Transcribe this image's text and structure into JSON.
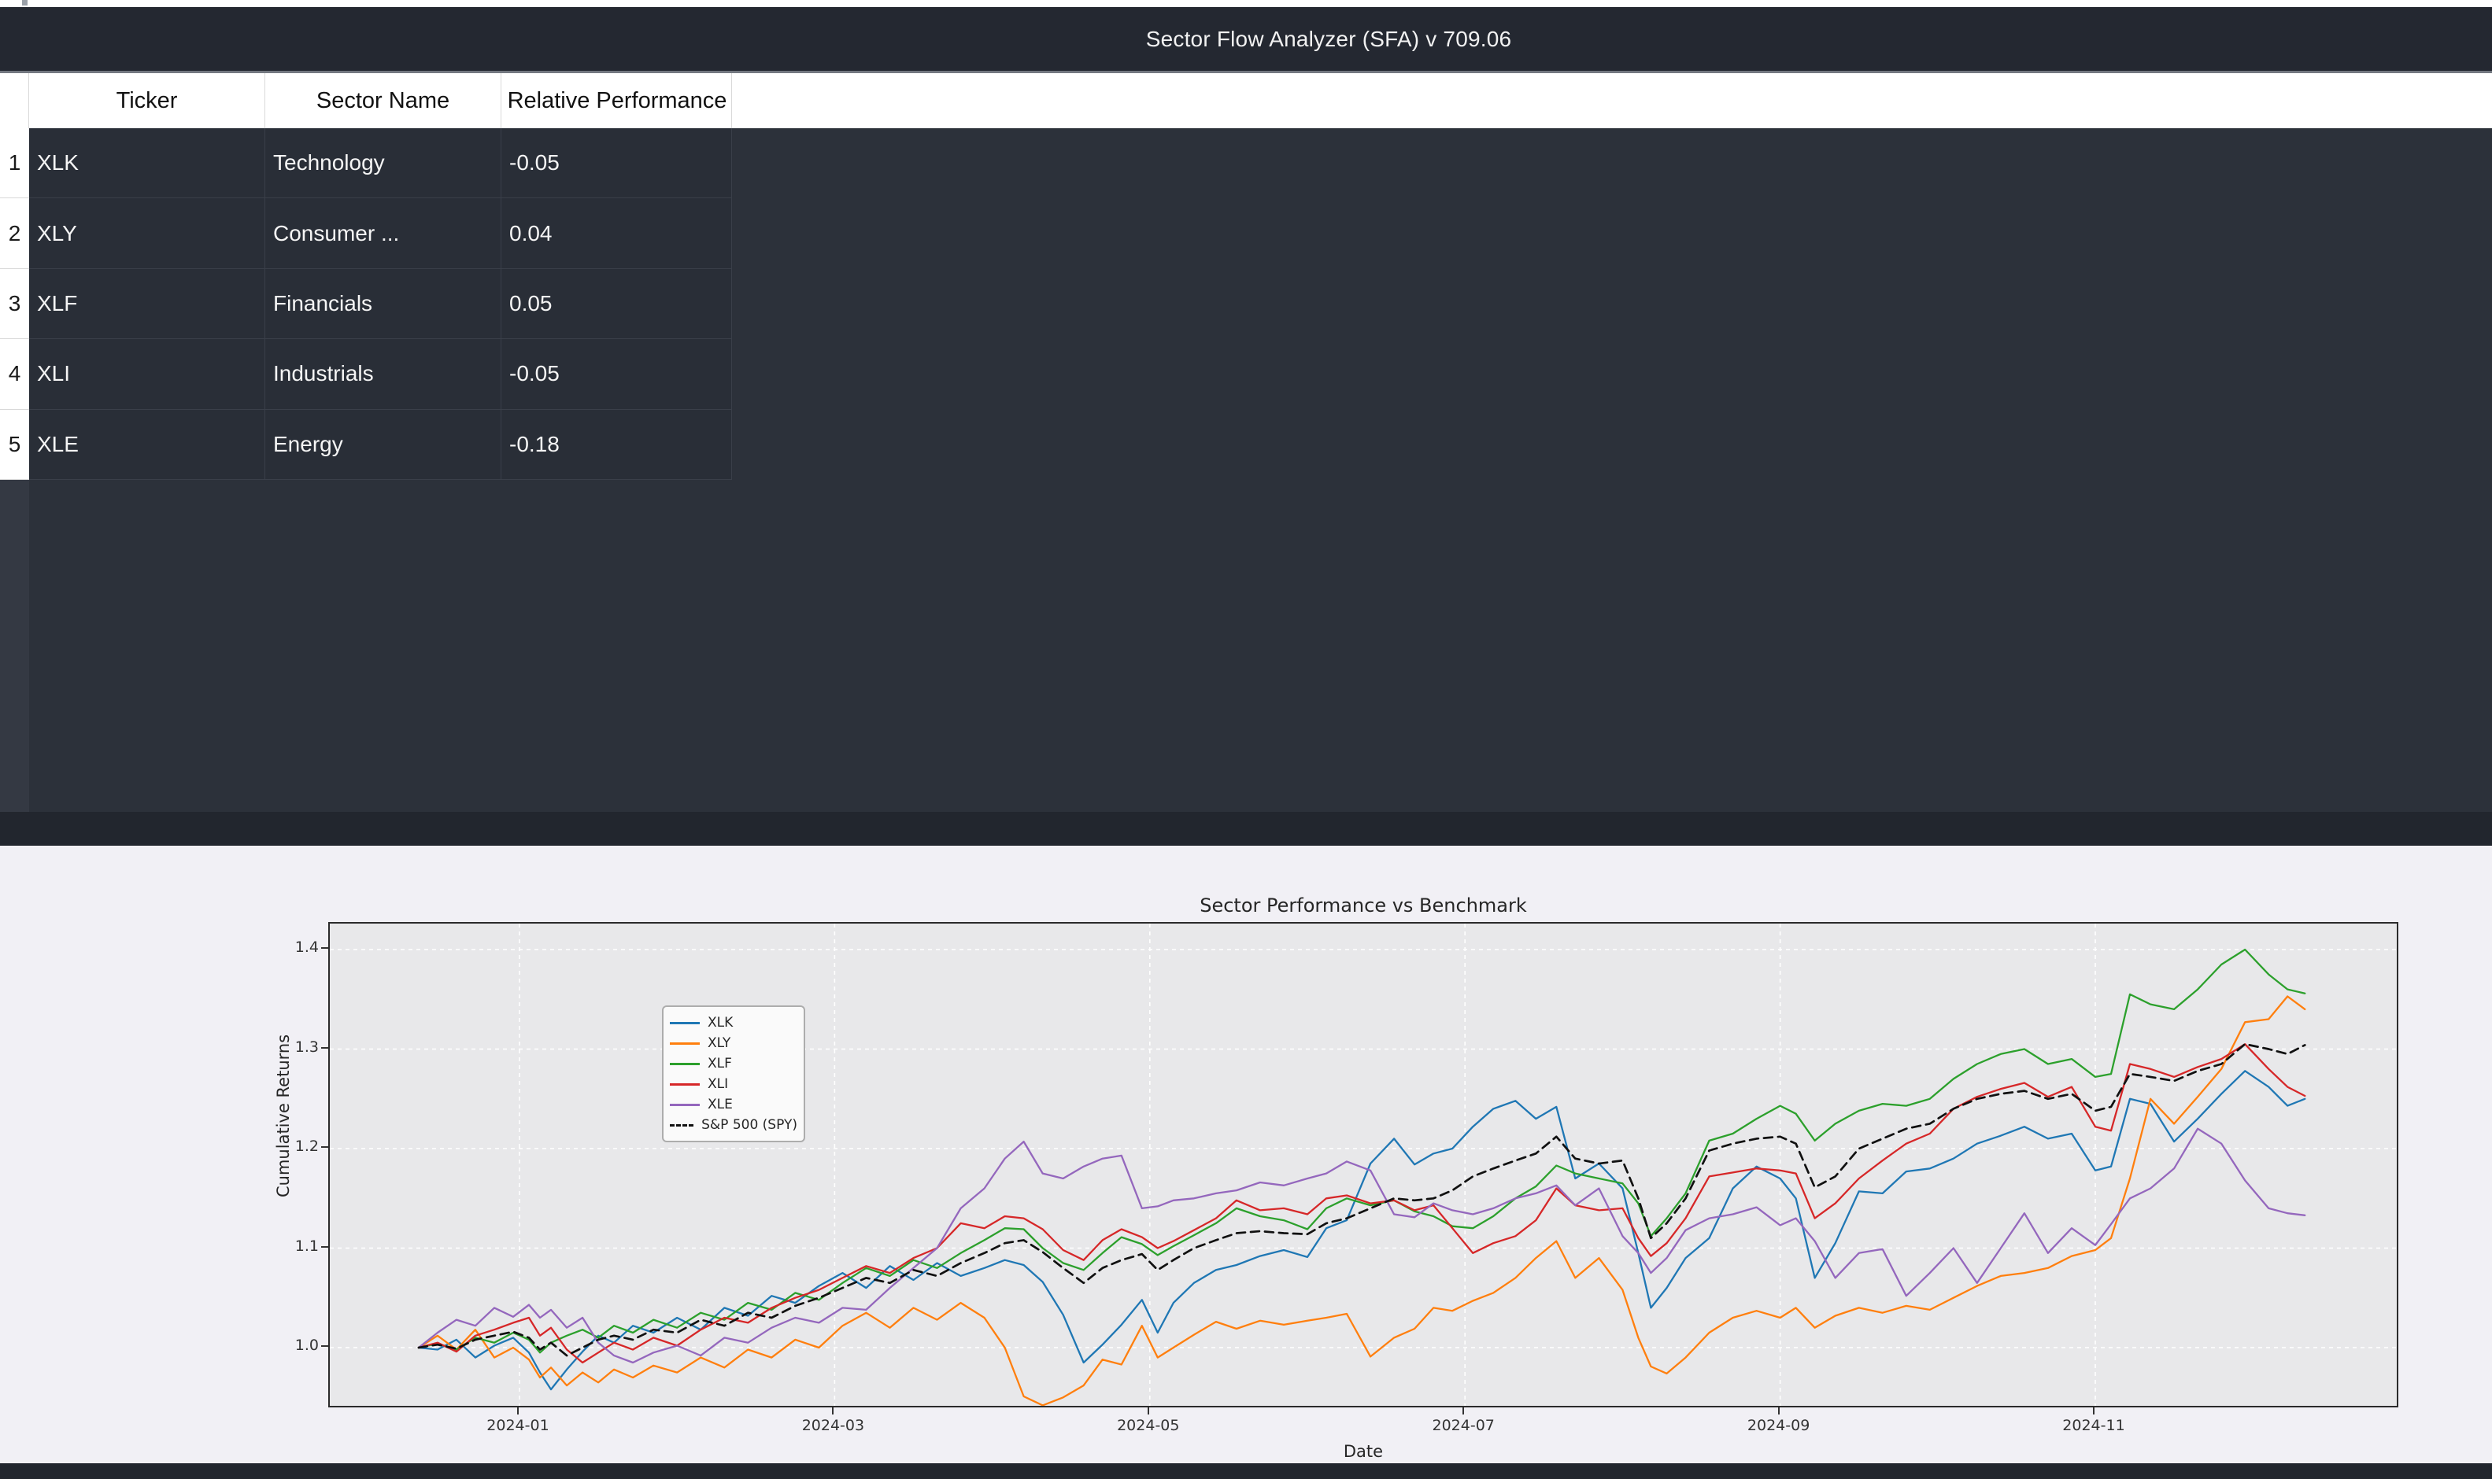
{
  "app": {
    "title_bar": "Sector Flow Analyzer (SFA) v 709.06"
  },
  "table": {
    "columns": [
      "Ticker",
      "Sector Name",
      "Relative Performance"
    ],
    "rows": [
      {
        "num": "1",
        "ticker": "XLK",
        "sector": "Technology",
        "rel_perf": "-0.05"
      },
      {
        "num": "2",
        "ticker": "XLY",
        "sector": "Consumer ...",
        "rel_perf": "0.04"
      },
      {
        "num": "3",
        "ticker": "XLF",
        "sector": "Financials",
        "rel_perf": "0.05"
      },
      {
        "num": "4",
        "ticker": "XLI",
        "sector": "Industrials",
        "rel_perf": "-0.05"
      },
      {
        "num": "5",
        "ticker": "XLE",
        "sector": "Energy",
        "rel_perf": "-0.18"
      }
    ]
  },
  "chart_data": {
    "type": "line",
    "title": "Sector Performance vs Benchmark",
    "xlabel": "Date",
    "ylabel": "Cumulative Returns",
    "grid": "white-dashed",
    "legend_position": "upper left",
    "plot_bg": "#e8e8ea",
    "figure_bg": "#f1f0f5",
    "yticks": [
      1.0,
      1.1,
      1.2,
      1.3,
      1.4
    ],
    "ylim": [
      0.938,
      1.426
    ],
    "xlim_months": [
      -1.2,
      11.93
    ],
    "xticks": [
      {
        "label": "2024-01",
        "m": 0
      },
      {
        "label": "2024-03",
        "m": 2
      },
      {
        "label": "2024-05",
        "m": 4
      },
      {
        "label": "2024-07",
        "m": 6
      },
      {
        "label": "2024-09",
        "m": 8
      },
      {
        "label": "2024-11",
        "m": 10
      }
    ],
    "x_months": [
      -0.64,
      -0.52,
      -0.4,
      -0.28,
      -0.16,
      -0.04,
      0.06,
      0.13,
      0.2,
      0.3,
      0.4,
      0.5,
      0.6,
      0.72,
      0.85,
      1.0,
      1.15,
      1.3,
      1.45,
      1.6,
      1.75,
      1.9,
      2.05,
      2.2,
      2.35,
      2.5,
      2.65,
      2.8,
      2.95,
      3.08,
      3.2,
      3.32,
      3.45,
      3.58,
      3.7,
      3.82,
      3.95,
      4.05,
      4.15,
      4.28,
      4.42,
      4.55,
      4.7,
      4.85,
      5.0,
      5.12,
      5.25,
      5.4,
      5.55,
      5.68,
      5.8,
      5.92,
      6.05,
      6.18,
      6.32,
      6.45,
      6.58,
      6.7,
      6.85,
      7.0,
      7.1,
      7.18,
      7.28,
      7.4,
      7.55,
      7.7,
      7.85,
      8.0,
      8.1,
      8.22,
      8.35,
      8.5,
      8.65,
      8.8,
      8.95,
      9.1,
      9.25,
      9.4,
      9.55,
      9.7,
      9.85,
      10.0,
      10.1,
      10.22,
      10.35,
      10.5,
      10.65,
      10.8,
      10.95,
      11.1,
      11.22,
      11.33
    ],
    "series": [
      {
        "name": "XLK",
        "color": "#1f77b4",
        "dash": false,
        "values": [
          1.0,
          0.998,
          1.008,
          0.99,
          1.002,
          1.01,
          0.995,
          0.975,
          0.958,
          0.978,
          0.996,
          1.012,
          1.005,
          1.022,
          1.015,
          1.03,
          1.018,
          1.04,
          1.032,
          1.052,
          1.045,
          1.062,
          1.075,
          1.06,
          1.082,
          1.068,
          1.085,
          1.072,
          1.08,
          1.088,
          1.083,
          1.066,
          1.033,
          0.985,
          1.003,
          1.023,
          1.048,
          1.015,
          1.045,
          1.065,
          1.078,
          1.083,
          1.092,
          1.098,
          1.091,
          1.12,
          1.128,
          1.185,
          1.21,
          1.184,
          1.195,
          1.2,
          1.222,
          1.24,
          1.248,
          1.23,
          1.242,
          1.17,
          1.185,
          1.16,
          1.095,
          1.04,
          1.06,
          1.09,
          1.11,
          1.16,
          1.182,
          1.17,
          1.15,
          1.07,
          1.105,
          1.157,
          1.155,
          1.177,
          1.18,
          1.19,
          1.205,
          1.213,
          1.222,
          1.21,
          1.215,
          1.178,
          1.182,
          1.25,
          1.245,
          1.207,
          1.23,
          1.255,
          1.278,
          1.262,
          1.243,
          1.25
        ]
      },
      {
        "name": "XLY",
        "color": "#ff7f0e",
        "dash": false,
        "values": [
          1.0,
          1.012,
          0.998,
          1.018,
          0.99,
          1.0,
          0.988,
          0.97,
          0.98,
          0.962,
          0.975,
          0.965,
          0.978,
          0.97,
          0.982,
          0.975,
          0.99,
          0.98,
          0.998,
          0.99,
          1.008,
          1.0,
          1.022,
          1.035,
          1.02,
          1.04,
          1.028,
          1.045,
          1.03,
          1.0,
          0.951,
          0.942,
          0.95,
          0.962,
          0.988,
          0.983,
          1.022,
          0.99,
          1.0,
          1.013,
          1.026,
          1.019,
          1.027,
          1.023,
          1.027,
          1.03,
          1.034,
          0.991,
          1.01,
          1.019,
          1.04,
          1.037,
          1.047,
          1.055,
          1.07,
          1.09,
          1.107,
          1.07,
          1.09,
          1.058,
          1.01,
          0.981,
          0.974,
          0.99,
          1.015,
          1.03,
          1.037,
          1.03,
          1.04,
          1.02,
          1.032,
          1.04,
          1.035,
          1.042,
          1.038,
          1.05,
          1.062,
          1.072,
          1.075,
          1.08,
          1.092,
          1.098,
          1.11,
          1.17,
          1.25,
          1.225,
          1.252,
          1.28,
          1.327,
          1.33,
          1.353,
          1.34
        ]
      },
      {
        "name": "XLF",
        "color": "#2ca02c",
        "dash": false,
        "values": [
          1.0,
          1.004,
          0.998,
          1.01,
          1.005,
          1.015,
          1.008,
          0.995,
          1.005,
          1.012,
          1.018,
          1.01,
          1.022,
          1.015,
          1.028,
          1.02,
          1.035,
          1.028,
          1.045,
          1.038,
          1.055,
          1.048,
          1.065,
          1.08,
          1.072,
          1.088,
          1.08,
          1.095,
          1.108,
          1.12,
          1.119,
          1.1,
          1.085,
          1.078,
          1.095,
          1.111,
          1.104,
          1.093,
          1.102,
          1.113,
          1.125,
          1.14,
          1.132,
          1.128,
          1.119,
          1.14,
          1.15,
          1.143,
          1.148,
          1.137,
          1.132,
          1.122,
          1.12,
          1.132,
          1.15,
          1.162,
          1.183,
          1.175,
          1.17,
          1.165,
          1.145,
          1.112,
          1.13,
          1.155,
          1.208,
          1.215,
          1.23,
          1.243,
          1.235,
          1.208,
          1.225,
          1.238,
          1.245,
          1.243,
          1.25,
          1.27,
          1.285,
          1.295,
          1.3,
          1.285,
          1.29,
          1.272,
          1.275,
          1.355,
          1.345,
          1.34,
          1.36,
          1.385,
          1.4,
          1.375,
          1.36,
          1.356
        ]
      },
      {
        "name": "XLI",
        "color": "#d62728",
        "dash": false,
        "values": [
          1.0,
          1.005,
          0.996,
          1.012,
          1.018,
          1.025,
          1.03,
          1.012,
          1.02,
          0.998,
          0.985,
          0.995,
          1.005,
          0.998,
          1.01,
          1.002,
          1.018,
          1.03,
          1.025,
          1.04,
          1.05,
          1.058,
          1.07,
          1.082,
          1.075,
          1.09,
          1.1,
          1.125,
          1.12,
          1.132,
          1.13,
          1.119,
          1.098,
          1.088,
          1.108,
          1.119,
          1.111,
          1.1,
          1.107,
          1.118,
          1.13,
          1.148,
          1.138,
          1.14,
          1.134,
          1.15,
          1.153,
          1.145,
          1.148,
          1.138,
          1.143,
          1.12,
          1.095,
          1.105,
          1.112,
          1.128,
          1.16,
          1.143,
          1.138,
          1.14,
          1.11,
          1.092,
          1.105,
          1.13,
          1.172,
          1.176,
          1.18,
          1.178,
          1.175,
          1.13,
          1.145,
          1.17,
          1.188,
          1.205,
          1.215,
          1.24,
          1.252,
          1.26,
          1.266,
          1.252,
          1.262,
          1.222,
          1.218,
          1.285,
          1.28,
          1.272,
          1.282,
          1.29,
          1.305,
          1.28,
          1.262,
          1.253
        ]
      },
      {
        "name": "XLE",
        "color": "#9467bd",
        "dash": false,
        "values": [
          1.0,
          1.015,
          1.028,
          1.022,
          1.04,
          1.031,
          1.043,
          1.03,
          1.038,
          1.02,
          1.03,
          1.005,
          0.992,
          0.985,
          0.995,
          1.002,
          0.992,
          1.01,
          1.005,
          1.02,
          1.03,
          1.025,
          1.04,
          1.038,
          1.06,
          1.08,
          1.1,
          1.14,
          1.16,
          1.19,
          1.207,
          1.175,
          1.17,
          1.182,
          1.19,
          1.193,
          1.14,
          1.142,
          1.148,
          1.15,
          1.155,
          1.158,
          1.166,
          1.163,
          1.17,
          1.175,
          1.187,
          1.178,
          1.134,
          1.131,
          1.145,
          1.138,
          1.134,
          1.14,
          1.15,
          1.155,
          1.163,
          1.143,
          1.16,
          1.112,
          1.095,
          1.075,
          1.09,
          1.118,
          1.13,
          1.134,
          1.141,
          1.123,
          1.13,
          1.107,
          1.07,
          1.095,
          1.099,
          1.052,
          1.075,
          1.1,
          1.065,
          1.1,
          1.135,
          1.095,
          1.12,
          1.103,
          1.124,
          1.15,
          1.16,
          1.18,
          1.22,
          1.205,
          1.168,
          1.14,
          1.135,
          1.133
        ]
      },
      {
        "name": "S&P 500 (SPY)",
        "color": "#111111",
        "dash": true,
        "values": [
          1.0,
          1.003,
          0.999,
          1.008,
          1.012,
          1.016,
          1.01,
          0.998,
          1.005,
          0.992,
          1.0,
          1.008,
          1.012,
          1.008,
          1.018,
          1.015,
          1.028,
          1.022,
          1.035,
          1.03,
          1.042,
          1.05,
          1.06,
          1.07,
          1.065,
          1.078,
          1.072,
          1.085,
          1.095,
          1.105,
          1.108,
          1.096,
          1.08,
          1.065,
          1.08,
          1.088,
          1.094,
          1.078,
          1.088,
          1.1,
          1.108,
          1.115,
          1.117,
          1.115,
          1.114,
          1.125,
          1.13,
          1.14,
          1.15,
          1.148,
          1.15,
          1.158,
          1.172,
          1.18,
          1.188,
          1.195,
          1.212,
          1.19,
          1.185,
          1.188,
          1.15,
          1.11,
          1.125,
          1.15,
          1.198,
          1.205,
          1.21,
          1.212,
          1.205,
          1.161,
          1.172,
          1.2,
          1.21,
          1.22,
          1.225,
          1.24,
          1.25,
          1.255,
          1.258,
          1.25,
          1.255,
          1.238,
          1.242,
          1.275,
          1.272,
          1.268,
          1.278,
          1.285,
          1.305,
          1.3,
          1.295,
          1.304
        ]
      }
    ]
  }
}
